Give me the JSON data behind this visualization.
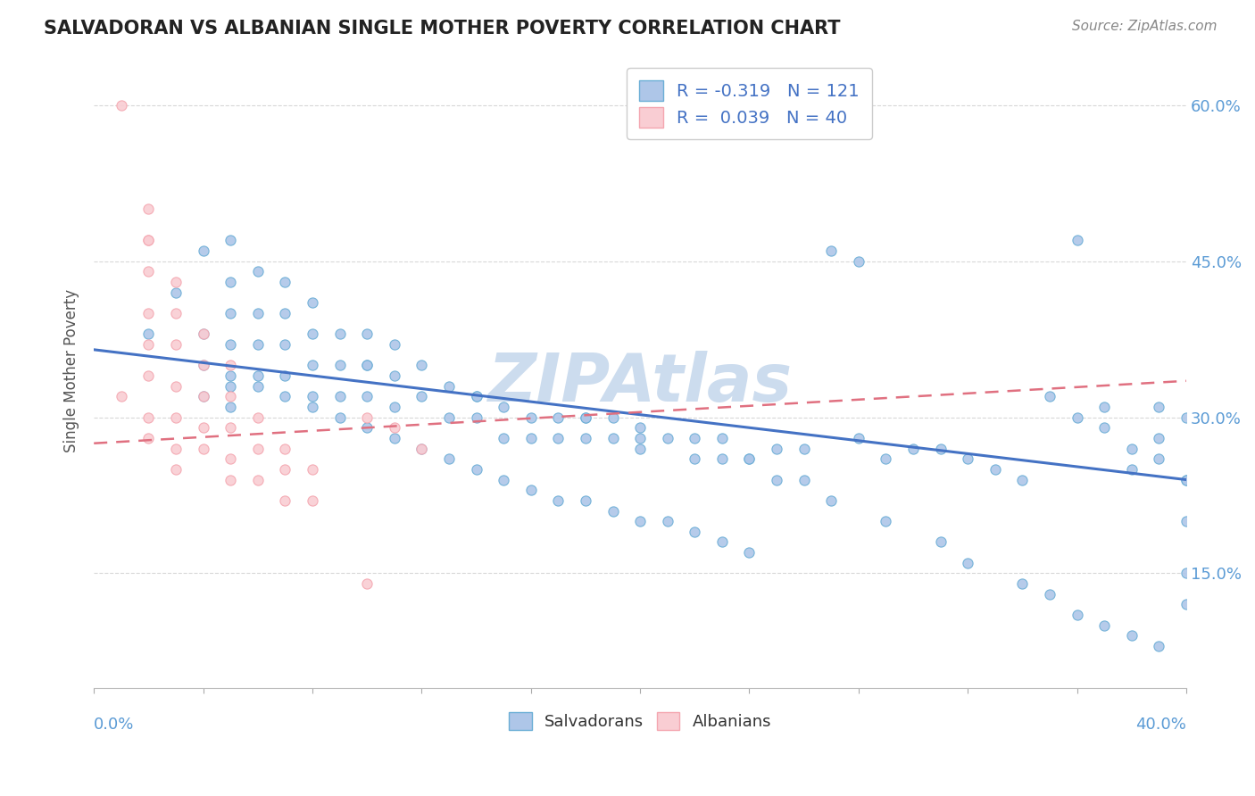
{
  "title": "SALVADORAN VS ALBANIAN SINGLE MOTHER POVERTY CORRELATION CHART",
  "source_text": "Source: ZipAtlas.com",
  "ylabel": "Single Mother Poverty",
  "yticks": [
    0.15,
    0.3,
    0.45,
    0.6
  ],
  "ytick_labels": [
    "15.0%",
    "30.0%",
    "45.0%",
    "60.0%"
  ],
  "xlim": [
    0.0,
    0.4
  ],
  "ylim": [
    0.04,
    0.65
  ],
  "salvadoran_R": -0.319,
  "salvadoran_N": 121,
  "albanian_R": 0.039,
  "albanian_N": 40,
  "blue_face": "#aec6e8",
  "blue_edge": "#6baed6",
  "pink_face": "#f9cdd3",
  "pink_edge": "#f4a6b0",
  "trend_blue": "#4472c4",
  "trend_pink": "#e07080",
  "background_color": "#ffffff",
  "watermark_color": "#ccdcee",
  "legend_R_color": "#4472c4",
  "grid_color": "#d8d8d8",
  "sal_x": [
    0.02,
    0.03,
    0.04,
    0.04,
    0.04,
    0.04,
    0.05,
    0.05,
    0.05,
    0.05,
    0.05,
    0.05,
    0.06,
    0.06,
    0.06,
    0.06,
    0.07,
    0.07,
    0.07,
    0.07,
    0.08,
    0.08,
    0.08,
    0.08,
    0.09,
    0.09,
    0.09,
    0.1,
    0.1,
    0.1,
    0.11,
    0.11,
    0.11,
    0.12,
    0.12,
    0.13,
    0.13,
    0.14,
    0.14,
    0.15,
    0.15,
    0.16,
    0.16,
    0.17,
    0.17,
    0.18,
    0.18,
    0.19,
    0.19,
    0.2,
    0.2,
    0.21,
    0.22,
    0.22,
    0.23,
    0.23,
    0.24,
    0.25,
    0.26,
    0.26,
    0.27,
    0.28,
    0.28,
    0.29,
    0.3,
    0.31,
    0.32,
    0.33,
    0.34,
    0.35,
    0.36,
    0.36,
    0.37,
    0.37,
    0.38,
    0.38,
    0.39,
    0.39,
    0.39,
    0.4,
    0.05,
    0.06,
    0.07,
    0.08,
    0.09,
    0.1,
    0.11,
    0.12,
    0.13,
    0.14,
    0.15,
    0.16,
    0.17,
    0.18,
    0.19,
    0.2,
    0.21,
    0.22,
    0.23,
    0.24,
    0.1,
    0.14,
    0.18,
    0.2,
    0.24,
    0.25,
    0.27,
    0.29,
    0.31,
    0.32,
    0.34,
    0.35,
    0.36,
    0.37,
    0.38,
    0.39,
    0.4,
    0.4,
    0.4,
    0.4,
    0.4
  ],
  "sal_y": [
    0.38,
    0.42,
    0.46,
    0.38,
    0.35,
    0.32,
    0.47,
    0.43,
    0.4,
    0.37,
    0.34,
    0.31,
    0.44,
    0.4,
    0.37,
    0.34,
    0.43,
    0.4,
    0.37,
    0.34,
    0.41,
    0.38,
    0.35,
    0.32,
    0.38,
    0.35,
    0.32,
    0.38,
    0.35,
    0.32,
    0.37,
    0.34,
    0.31,
    0.35,
    0.32,
    0.33,
    0.3,
    0.32,
    0.3,
    0.31,
    0.28,
    0.3,
    0.28,
    0.3,
    0.28,
    0.3,
    0.28,
    0.3,
    0.28,
    0.29,
    0.27,
    0.28,
    0.28,
    0.26,
    0.28,
    0.26,
    0.26,
    0.27,
    0.27,
    0.24,
    0.46,
    0.45,
    0.28,
    0.26,
    0.27,
    0.27,
    0.26,
    0.25,
    0.24,
    0.32,
    0.3,
    0.47,
    0.31,
    0.29,
    0.27,
    0.25,
    0.31,
    0.28,
    0.26,
    0.24,
    0.33,
    0.33,
    0.32,
    0.31,
    0.3,
    0.29,
    0.28,
    0.27,
    0.26,
    0.25,
    0.24,
    0.23,
    0.22,
    0.22,
    0.21,
    0.2,
    0.2,
    0.19,
    0.18,
    0.17,
    0.35,
    0.32,
    0.3,
    0.28,
    0.26,
    0.24,
    0.22,
    0.2,
    0.18,
    0.16,
    0.14,
    0.13,
    0.11,
    0.1,
    0.09,
    0.08,
    0.24,
    0.2,
    0.15,
    0.12,
    0.3
  ],
  "alb_x": [
    0.01,
    0.01,
    0.02,
    0.02,
    0.02,
    0.02,
    0.02,
    0.02,
    0.02,
    0.02,
    0.02,
    0.03,
    0.03,
    0.03,
    0.03,
    0.03,
    0.03,
    0.03,
    0.04,
    0.04,
    0.04,
    0.04,
    0.04,
    0.05,
    0.05,
    0.05,
    0.05,
    0.05,
    0.06,
    0.06,
    0.06,
    0.07,
    0.07,
    0.07,
    0.08,
    0.08,
    0.1,
    0.1,
    0.11,
    0.12
  ],
  "alb_y": [
    0.6,
    0.32,
    0.5,
    0.47,
    0.44,
    0.4,
    0.37,
    0.34,
    0.3,
    0.28,
    0.47,
    0.43,
    0.4,
    0.37,
    0.33,
    0.3,
    0.27,
    0.25,
    0.38,
    0.35,
    0.32,
    0.29,
    0.27,
    0.35,
    0.32,
    0.29,
    0.26,
    0.24,
    0.3,
    0.27,
    0.24,
    0.27,
    0.25,
    0.22,
    0.25,
    0.22,
    0.3,
    0.14,
    0.29,
    0.27
  ],
  "blue_trendline": [
    0.365,
    0.24
  ],
  "pink_trendline_x": [
    0.0,
    0.4
  ],
  "pink_trendline_y": [
    0.275,
    0.335
  ]
}
